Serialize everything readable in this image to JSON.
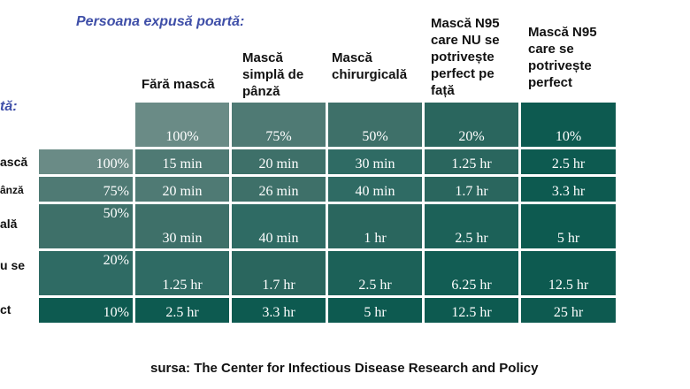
{
  "exposed_title": "Persoana expusă poartă:",
  "source_title_fragment": "tă:",
  "columns": [
    {
      "label": "Fără mască",
      "pct": "100%"
    },
    {
      "label": "Mască simplă de pânză",
      "pct": "75%"
    },
    {
      "label": "Mască chirurgicală",
      "pct": "50%"
    },
    {
      "label": "Mască N95 care NU se potrivește perfect pe față",
      "pct": "20%"
    },
    {
      "label": "Mască N95 care se potrivește perfect",
      "pct": "10%"
    }
  ],
  "rows": [
    {
      "label_fragment": "ască",
      "pct": "100%",
      "values": [
        "15 min",
        "20 min",
        "30 min",
        "1.25 hr",
        "2.5 hr"
      ]
    },
    {
      "label_fragment": "ânză",
      "pct": "75%",
      "values": [
        "20 min",
        "26 min",
        "40 min",
        "1.7 hr",
        "3.3 hr"
      ]
    },
    {
      "label_fragment": "ală",
      "pct": "50%",
      "values": [
        "30 min",
        "40 min",
        "1 hr",
        "2.5 hr",
        "5 hr"
      ]
    },
    {
      "label_fragment": "u se",
      "pct": "20%",
      "values": [
        "1.25 hr",
        "1.7 hr",
        "2.5 hr",
        "6.25 hr",
        "12.5 hr"
      ]
    },
    {
      "label_fragment": "ct",
      "pct": "10%",
      "values": [
        "2.5 hr",
        "3.3 hr",
        "5 hr",
        "12.5 hr",
        "25 hr"
      ]
    }
  ],
  "source": "sursa: The Center for Infectious Disease Research and Policy",
  "colors": {
    "c1": "#6a8b86",
    "c2": "#4f7a74",
    "c3": "#3e7069",
    "c4": "#2a665e",
    "c5": "#0d5a50"
  }
}
